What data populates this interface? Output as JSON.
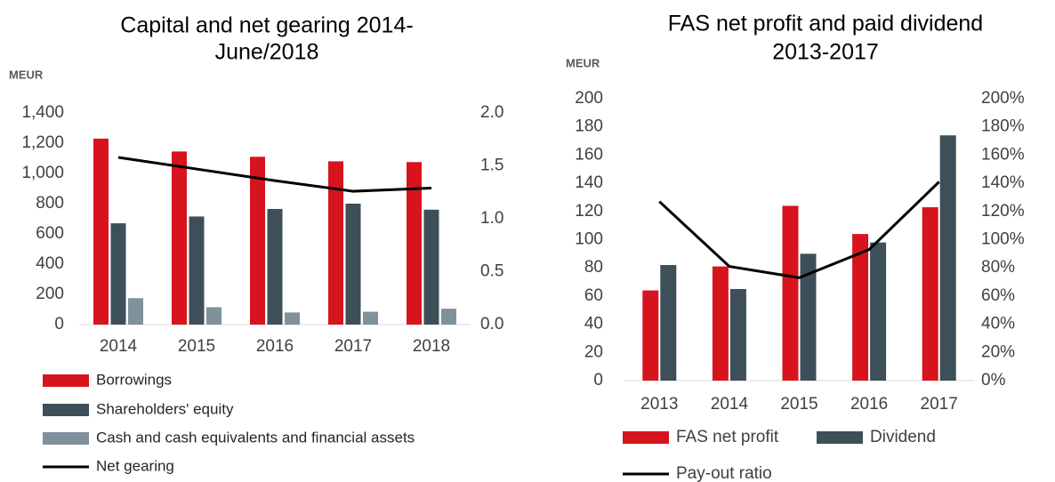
{
  "chart_data": [
    {
      "type": "bar",
      "title": [
        "Capital  and net gearing  2014-",
        "June/2018"
      ],
      "y_label": "MEUR",
      "categories": [
        "2014",
        "2015",
        "2016",
        "2017",
        "2018"
      ],
      "series": [
        {
          "name": "Borrowings",
          "color": "#d7141e",
          "values": [
            1230,
            1145,
            1110,
            1080,
            1075
          ]
        },
        {
          "name": "Shareholders' equity",
          "color": "#3d4f59",
          "values": [
            670,
            715,
            765,
            800,
            760
          ]
        },
        {
          "name": "Cash and cash equivalents and financial assets",
          "color": "#7f919b",
          "values": [
            175,
            115,
            80,
            85,
            105
          ]
        },
        {
          "name": "Net gearing",
          "color": "#000000",
          "type": "line",
          "axis": "y2",
          "values": [
            1.58,
            1.47,
            1.36,
            1.26,
            1.29
          ]
        }
      ],
      "ylim": [
        0,
        1400
      ],
      "yticks": [
        0,
        200,
        400,
        600,
        800,
        {
          "value": 1000,
          "label": "1,000"
        },
        {
          "value": 1200,
          "label": "1,200"
        },
        {
          "value": 1400,
          "label": "1,400"
        }
      ],
      "y2lim": [
        0,
        2
      ],
      "y2ticks": [
        {
          "value": 0,
          "label": "0.0"
        },
        0.5,
        {
          "value": 1,
          "label": "1.0"
        },
        1.5,
        {
          "value": 2,
          "label": "2.0"
        }
      ],
      "grid": false
    },
    {
      "type": "bar",
      "title": [
        "FAS net profit and paid dividend",
        "2013-2017"
      ],
      "y_label": "MEUR",
      "categories": [
        "2013",
        "2014",
        "2015",
        "2016",
        "2017"
      ],
      "series": [
        {
          "name": "FAS net profit",
          "color": "#d7141e",
          "values": [
            64,
            81,
            124,
            104,
            123
          ]
        },
        {
          "name": "Dividend",
          "color": "#3d4f59",
          "values": [
            82,
            65,
            90,
            98,
            174
          ]
        },
        {
          "name": "Pay-out ratio",
          "color": "#000000",
          "type": "line",
          "axis": "y2",
          "values": [
            127,
            81,
            73,
            93,
            141
          ]
        }
      ],
      "ylim": [
        0,
        200
      ],
      "yticks": [
        0,
        20,
        40,
        60,
        80,
        100,
        120,
        140,
        160,
        180,
        200
      ],
      "y2lim": [
        0,
        200
      ],
      "y2ticks": [
        {
          "value": 0,
          "label": "0%"
        },
        {
          "value": 20,
          "label": "20%"
        },
        {
          "value": 40,
          "label": "40%"
        },
        {
          "value": 60,
          "label": "60%"
        },
        {
          "value": 80,
          "label": "80%"
        },
        {
          "value": 100,
          "label": "100%"
        },
        {
          "value": 120,
          "label": "120%"
        },
        {
          "value": 140,
          "label": "140%"
        },
        {
          "value": 160,
          "label": "160%"
        },
        {
          "value": 180,
          "label": "180%"
        },
        {
          "value": 200,
          "label": "200%"
        }
      ],
      "grid": false
    }
  ]
}
